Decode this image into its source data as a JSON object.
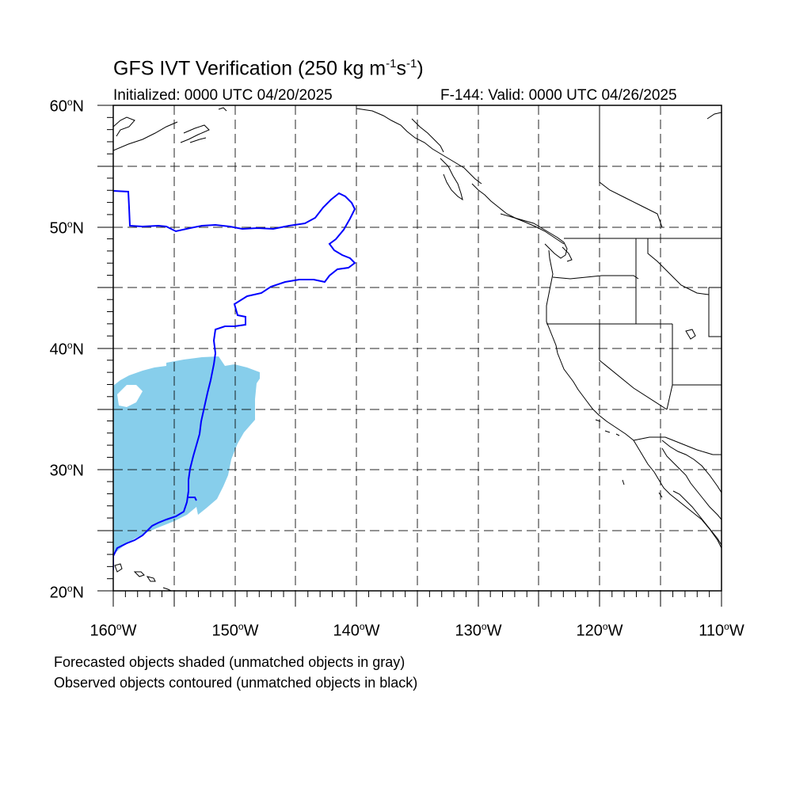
{
  "title": {
    "prefix": "GFS IVT Verification (250 kg m",
    "exp1": "-1",
    "mid": "s",
    "exp2": "-1",
    "suffix": ")"
  },
  "initialized": "Initialized: 0000 UTC 04/20/2025",
  "valid": "F-144: Valid: 0000 UTC 04/26/2025",
  "lat_labels": [
    {
      "num": "60",
      "deg": "o",
      "hem": "N"
    },
    {
      "num": "50",
      "deg": "o",
      "hem": "N"
    },
    {
      "num": "40",
      "deg": "o",
      "hem": "N"
    },
    {
      "num": "30",
      "deg": "o",
      "hem": "N"
    },
    {
      "num": "20",
      "deg": "o",
      "hem": "N"
    }
  ],
  "lon_labels": [
    {
      "num": "160",
      "deg": "o",
      "hem": "W"
    },
    {
      "num": "150",
      "deg": "o",
      "hem": "W"
    },
    {
      "num": "140",
      "deg": "o",
      "hem": "W"
    },
    {
      "num": "130",
      "deg": "o",
      "hem": "W"
    },
    {
      "num": "120",
      "deg": "o",
      "hem": "W"
    },
    {
      "num": "110",
      "deg": "o",
      "hem": "W"
    }
  ],
  "footnotes": [
    "Forecasted objects shaded (unmatched objects in gray)",
    "Observed objects contoured (unmatched objects in black)"
  ],
  "colors": {
    "forecast_fill": "#87ceeb",
    "observed_contour": "#0000ff",
    "coast": "#000000",
    "grid": "#000000"
  }
}
